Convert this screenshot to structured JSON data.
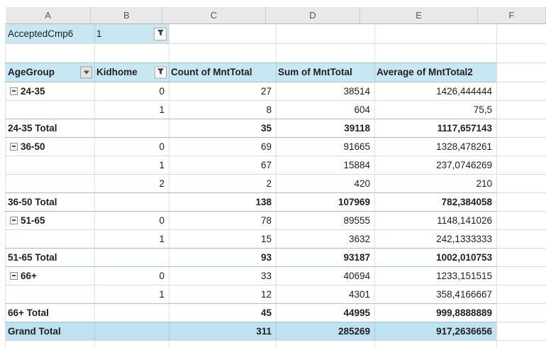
{
  "sheet": {
    "column_letters": [
      "A",
      "B",
      "C",
      "D",
      "E",
      "F"
    ],
    "filter_row": {
      "label": "AcceptedCmp6",
      "value": "1",
      "filter_icon": "filter-funnel-icon"
    },
    "pivot": {
      "headers": [
        "AgeGroup",
        "Kidhome",
        "Count of MntTotal",
        "Sum of MntTotal",
        "Average of MntTotal2"
      ],
      "agegroup_dropdown_icon": "chevron-down-icon",
      "kidhome_filter_icon": "filter-funnel-icon",
      "rows": [
        {
          "type": "group-start",
          "collapse": true,
          "agegroup": "24-35",
          "kidhome": "0",
          "count": "27",
          "sum": "38514",
          "average": "1426,444444"
        },
        {
          "type": "data",
          "collapse": false,
          "agegroup": "",
          "kidhome": "1",
          "count": "8",
          "sum": "604",
          "average": "75,5"
        },
        {
          "type": "total",
          "collapse": false,
          "agegroup": "24-35 Total",
          "kidhome": "",
          "count": "35",
          "sum": "39118",
          "average": "1117,657143"
        },
        {
          "type": "group-start",
          "collapse": true,
          "agegroup": "36-50",
          "kidhome": "0",
          "count": "69",
          "sum": "91665",
          "average": "1328,478261"
        },
        {
          "type": "data",
          "collapse": false,
          "agegroup": "",
          "kidhome": "1",
          "count": "67",
          "sum": "15884",
          "average": "237,0746269"
        },
        {
          "type": "data",
          "collapse": false,
          "agegroup": "",
          "kidhome": "2",
          "count": "2",
          "sum": "420",
          "average": "210"
        },
        {
          "type": "total",
          "collapse": false,
          "agegroup": "36-50 Total",
          "kidhome": "",
          "count": "138",
          "sum": "107969",
          "average": "782,384058"
        },
        {
          "type": "group-start",
          "collapse": true,
          "agegroup": "51-65",
          "kidhome": "0",
          "count": "78",
          "sum": "89555",
          "average": "1148,141026"
        },
        {
          "type": "data",
          "collapse": false,
          "agegroup": "",
          "kidhome": "1",
          "count": "15",
          "sum": "3632",
          "average": "242,1333333"
        },
        {
          "type": "total",
          "collapse": false,
          "agegroup": "51-65 Total",
          "kidhome": "",
          "count": "93",
          "sum": "93187",
          "average": "1002,010753"
        },
        {
          "type": "group-start",
          "collapse": true,
          "agegroup": "66+",
          "kidhome": "0",
          "count": "33",
          "sum": "40694",
          "average": "1233,151515"
        },
        {
          "type": "data",
          "collapse": false,
          "agegroup": "",
          "kidhome": "1",
          "count": "12",
          "sum": "4301",
          "average": "358,4166667"
        },
        {
          "type": "total",
          "collapse": false,
          "agegroup": "66+ Total",
          "kidhome": "",
          "count": "45",
          "sum": "44995",
          "average": "999,8888889"
        },
        {
          "type": "grand",
          "collapse": false,
          "agegroup": "Grand Total",
          "kidhome": "",
          "count": "311",
          "sum": "285269",
          "average": "917,2636656"
        }
      ]
    },
    "colors": {
      "header_fill": "#C9E7F3",
      "grand_total_fill": "#BFE2F0",
      "pivot_border": "#9EC1D6",
      "gridline": "#D9D9D9"
    }
  }
}
